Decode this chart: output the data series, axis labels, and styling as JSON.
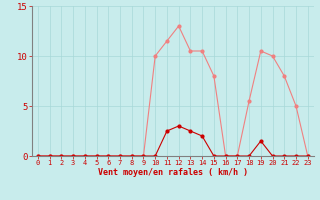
{
  "x": [
    0,
    1,
    2,
    3,
    4,
    5,
    6,
    7,
    8,
    9,
    10,
    11,
    12,
    13,
    14,
    15,
    16,
    17,
    18,
    19,
    20,
    21,
    22,
    23
  ],
  "y_rafales": [
    0,
    0,
    0,
    0,
    0,
    0,
    0,
    0,
    0,
    0,
    10,
    11.5,
    13,
    10.5,
    10.5,
    8,
    0,
    0,
    5.5,
    10.5,
    10,
    8,
    5,
    0
  ],
  "y_moyen": [
    0,
    0,
    0,
    0,
    0,
    0,
    0,
    0,
    0,
    0,
    0,
    2.5,
    3,
    2.5,
    2,
    0,
    0,
    0,
    0,
    1.5,
    0,
    0,
    0,
    0
  ],
  "color_rafales": "#f08080",
  "color_moyen": "#cc0000",
  "bg_color": "#c8ecec",
  "xlabel": "Vent moyen/en rafales ( km/h )",
  "ylim": [
    0,
    15
  ],
  "xlim": [
    -0.5,
    23.5
  ],
  "yticks": [
    0,
    5,
    10,
    15
  ],
  "xticks": [
    0,
    1,
    2,
    3,
    4,
    5,
    6,
    7,
    8,
    9,
    10,
    11,
    12,
    13,
    14,
    15,
    16,
    17,
    18,
    19,
    20,
    21,
    22,
    23
  ]
}
